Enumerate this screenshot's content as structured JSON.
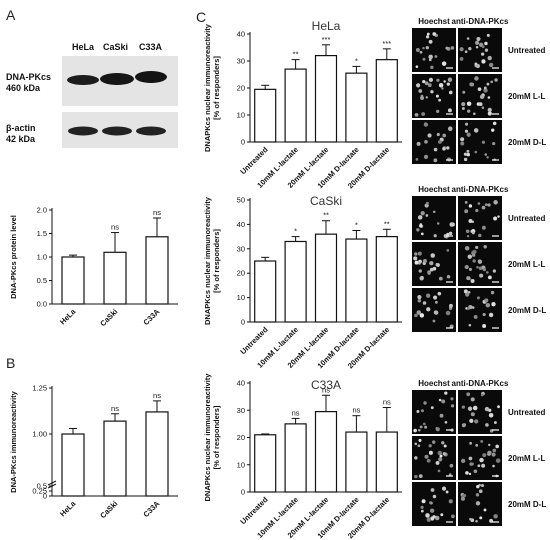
{
  "panels": {
    "a": "A",
    "b": "B",
    "c": "C"
  },
  "western_blot": {
    "lanes": [
      "HeLa",
      "CaSki",
      "C33A"
    ],
    "protein_label": "DNA-PKcs",
    "protein_kda": "460 kDa",
    "actin_label": "β-actin",
    "actin_kda": "42 kDa"
  },
  "micrographs": {
    "columns": [
      "Hoechst",
      "anti-DNA-PKcs"
    ],
    "rows": [
      "Untreated",
      "20mM L-L",
      "20mM D-L"
    ]
  },
  "chart_data": [
    {
      "id": "A-protein",
      "type": "bar",
      "ylabel": "DNA-PKcs protein level",
      "ylim": [
        0,
        2.0
      ],
      "yticks": [
        "0.0",
        "0.5",
        "1.0",
        "1.5",
        "2.0"
      ],
      "categories": [
        "HeLa",
        "CaSki",
        "C33A"
      ],
      "values": [
        1.0,
        1.1,
        1.43
      ],
      "errors": [
        0.04,
        0.42,
        0.4
      ],
      "significance": [
        "",
        "ns",
        "ns"
      ]
    },
    {
      "id": "B-immuno",
      "type": "bar",
      "ylabel": "DNA-PKcs immunoreactivity",
      "ylim": [
        0,
        1.25
      ],
      "yticks": [
        "0",
        "0.25",
        "0.5",
        "1.00",
        "1.25"
      ],
      "categories": [
        "HeLa",
        "CaSki",
        "C33A"
      ],
      "values": [
        1.0,
        1.07,
        1.12
      ],
      "errors": [
        0.03,
        0.04,
        0.06
      ],
      "significance": [
        "",
        "ns",
        "ns"
      ]
    },
    {
      "id": "C-HeLa",
      "type": "bar",
      "title": "HeLa",
      "ylabel": "DNAPKcs nuclear immunoreactivity [% of responders]",
      "ylim": [
        0,
        40
      ],
      "yticks": [
        "0",
        "10",
        "20",
        "30",
        "40"
      ],
      "categories": [
        "Untreated",
        "10mM L-lactate",
        "20mM L-lactate",
        "10mM D-lactate",
        "20mM D-lactate"
      ],
      "values": [
        19.5,
        27,
        32,
        25.5,
        30.5
      ],
      "errors": [
        1.5,
        3.5,
        4,
        2.5,
        4
      ],
      "significance": [
        "",
        "**",
        "***",
        "*",
        "***"
      ]
    },
    {
      "id": "C-CaSki",
      "type": "bar",
      "title": "CaSki",
      "ylabel": "DNAPKcs nuclear immunoreactivity [% of responders]",
      "ylim": [
        0,
        50
      ],
      "yticks": [
        "0",
        "10",
        "20",
        "30",
        "40",
        "50"
      ],
      "categories": [
        "Untreated",
        "10mM L-lactate",
        "20mM L-lactate",
        "10mM D-lactate",
        "20mM D-lactate"
      ],
      "values": [
        25,
        33,
        36,
        34,
        35
      ],
      "errors": [
        1.5,
        2,
        5.5,
        3.5,
        3
      ],
      "significance": [
        "",
        "*",
        "**",
        "*",
        "**"
      ]
    },
    {
      "id": "C-C33A",
      "type": "bar",
      "title": "C33A",
      "ylabel": "DNAPKcs nuclear immunoreactivity [% of responders]",
      "ylim": [
        0,
        40
      ],
      "yticks": [
        "0",
        "10",
        "20",
        "30",
        "40"
      ],
      "categories": [
        "Untreated",
        "10mM L-lactate",
        "20mM L-lactate",
        "10mM D-lactate",
        "20mM D-lactate"
      ],
      "values": [
        21,
        25,
        29.5,
        22,
        22
      ],
      "errors": [
        0.3,
        2,
        6,
        6,
        9
      ],
      "significance": [
        "",
        "ns",
        "ns",
        "ns",
        "ns"
      ]
    }
  ]
}
